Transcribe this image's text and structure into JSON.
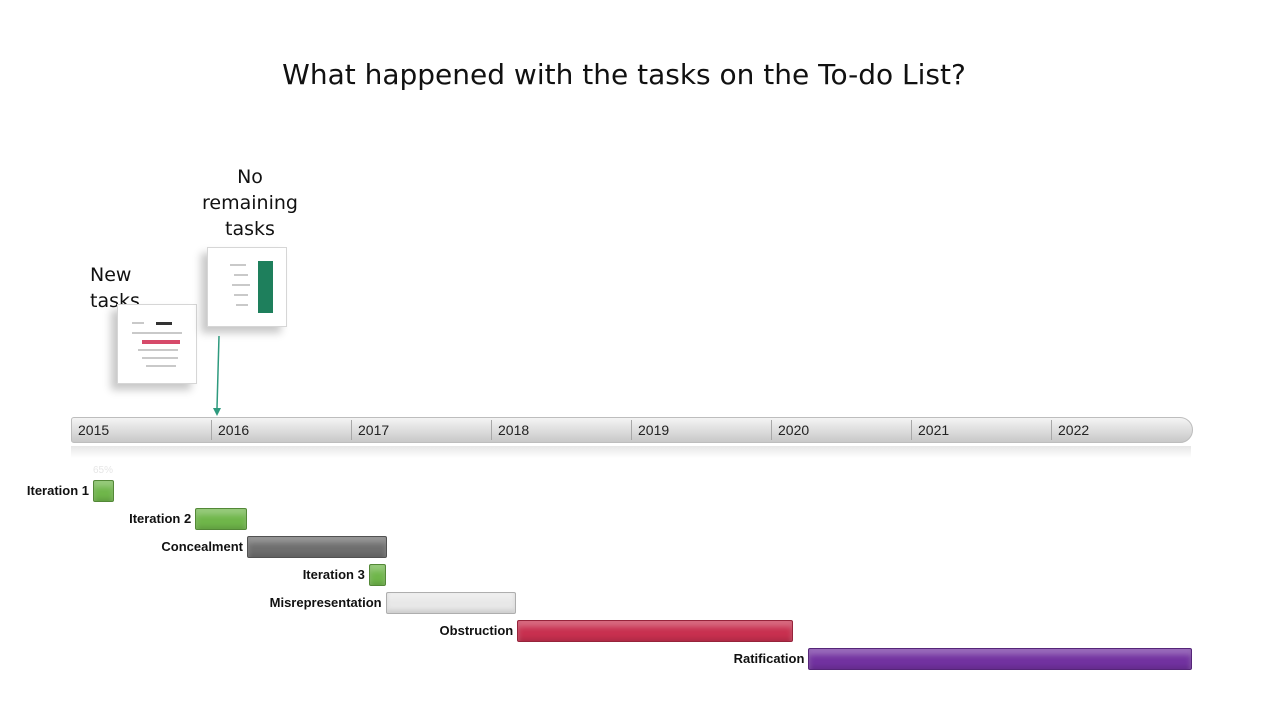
{
  "slide": {
    "title": "What happened with the tasks on the To-do List?"
  },
  "callouts": [
    {
      "id": "new",
      "lines": [
        "New",
        "tasks"
      ]
    },
    {
      "id": "none",
      "lines": [
        "No",
        "remaining",
        "tasks"
      ]
    }
  ],
  "chart_data": {
    "type": "gantt",
    "title": "",
    "axis": {
      "unit": "year",
      "min": 2015,
      "max": 2023,
      "ticks": [
        "2015",
        "2016",
        "2017",
        "2018",
        "2019",
        "2020",
        "2021",
        "2022"
      ]
    },
    "progress_label": "65%",
    "milestone": {
      "year": 2016.0
    },
    "tasks": [
      {
        "name": "Iteration 1",
        "start": 2015.15,
        "end": 2015.3,
        "color": "#6fb64a"
      },
      {
        "name": "Iteration 2",
        "start": 2015.88,
        "end": 2016.25,
        "color": "#6fb64a"
      },
      {
        "name": "Concealment",
        "start": 2016.25,
        "end": 2017.25,
        "color": "#6e6e6e"
      },
      {
        "name": "Iteration 3",
        "start": 2017.12,
        "end": 2017.24,
        "color": "#6fb64a"
      },
      {
        "name": "Misrepresentation",
        "start": 2017.24,
        "end": 2018.17,
        "color": "#e8e8e8"
      },
      {
        "name": "Obstruction",
        "start": 2018.18,
        "end": 2020.15,
        "color": "#c8304f"
      },
      {
        "name": "Ratification",
        "start": 2020.26,
        "end": 2023.0,
        "color": "#7232a0"
      }
    ]
  }
}
